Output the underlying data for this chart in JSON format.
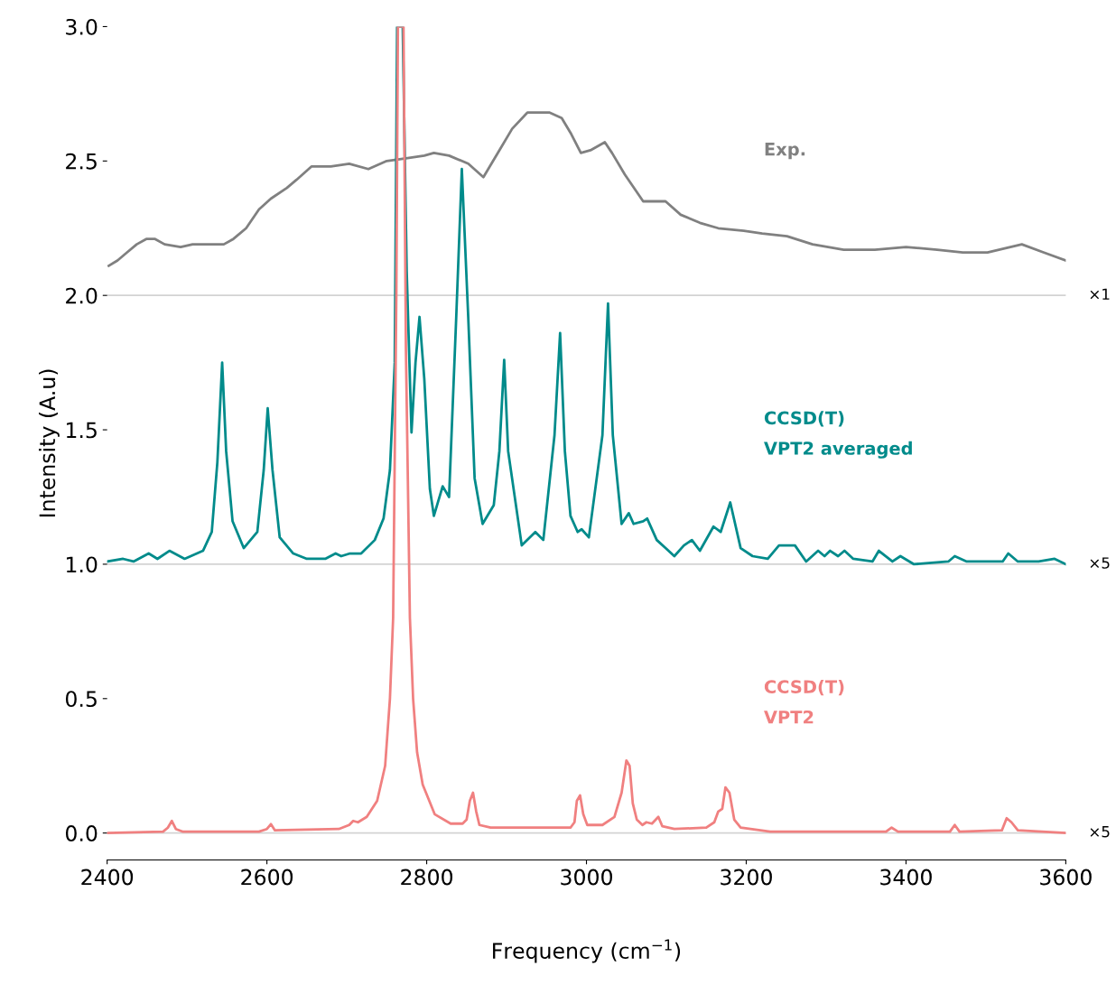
{
  "chart_data": {
    "type": "line",
    "xlabel": "Frequency (cm$^{−1}$)",
    "ylabel": "Intensity (A.u)",
    "xlim": [
      2400,
      3600
    ],
    "ylim": [
      -0.1,
      3.0
    ],
    "xticks": [
      2400,
      2600,
      2800,
      3000,
      3200,
      3400,
      3600
    ],
    "yticks": [
      {
        "value": 0,
        "label": "0.0"
      },
      0.5,
      {
        "value": 1,
        "label": "1.0"
      },
      1.5,
      {
        "value": 2,
        "label": "2.0"
      },
      2.5,
      {
        "value": 3,
        "label": "3.0"
      }
    ],
    "grid": false,
    "legend": false,
    "line_style": "solid",
    "marker": "none",
    "ref_lines": [
      {
        "axis": "y",
        "value": 2.0,
        "label": "×1",
        "color": "#d3d3d3"
      },
      {
        "axis": "y",
        "value": 1.0,
        "label": "×5",
        "color": "#d3d3d3"
      },
      {
        "axis": "y",
        "value": 0.0,
        "label": "×5",
        "color": "#d3d3d3"
      }
    ],
    "series": [
      {
        "name": "Exp.",
        "color": "#808080",
        "x": [
          2402,
          2413,
          2425,
          2437,
          2449,
          2460,
          2472,
          2492,
          2507,
          2531,
          2546,
          2558,
          2574,
          2590,
          2605,
          2625,
          2637,
          2656,
          2680,
          2703,
          2727,
          2750,
          2774,
          2797,
          2809,
          2828,
          2852,
          2871,
          2891,
          2907,
          2926,
          2954,
          2969,
          2981,
          2993,
          3005,
          3023,
          3032,
          3048,
          3071,
          3099,
          3118,
          3142,
          3165,
          3197,
          3220,
          3251,
          3283,
          3322,
          3361,
          3400,
          3439,
          3471,
          3502,
          3545,
          3572,
          3600
        ],
        "values": [
          2.11,
          2.13,
          2.16,
          2.19,
          2.21,
          2.21,
          2.19,
          2.18,
          2.19,
          2.19,
          2.19,
          2.21,
          2.25,
          2.32,
          2.36,
          2.4,
          2.43,
          2.48,
          2.48,
          2.49,
          2.47,
          2.5,
          2.51,
          2.52,
          2.53,
          2.52,
          2.49,
          2.44,
          2.54,
          2.62,
          2.68,
          2.68,
          2.66,
          2.6,
          2.53,
          2.54,
          2.57,
          2.53,
          2.45,
          2.35,
          2.35,
          2.3,
          2.27,
          2.25,
          2.24,
          2.23,
          2.22,
          2.19,
          2.17,
          2.17,
          2.18,
          2.17,
          2.16,
          2.16,
          2.19,
          2.16,
          2.13
        ]
      },
      {
        "name": "CCSD(T)\nVPT2 averaged",
        "color": "#008B8B",
        "x": [
          2400,
          2420,
          2433,
          2452,
          2463,
          2478,
          2497,
          2520,
          2531,
          2538,
          2544,
          2549,
          2557,
          2571,
          2588,
          2596,
          2601,
          2607,
          2616,
          2633,
          2650,
          2673,
          2686,
          2693,
          2704,
          2718,
          2735,
          2746,
          2754,
          2760,
          2763,
          2770,
          2775,
          2781,
          2786,
          2791,
          2797,
          2804,
          2809,
          2820,
          2828,
          2837,
          2844,
          2852,
          2860,
          2870,
          2884,
          2891,
          2897,
          2902,
          2919,
          2936,
          2946,
          2960,
          2967,
          2973,
          2980,
          2989,
          2994,
          3003,
          3020,
          3027,
          3033,
          3044,
          3053,
          3059,
          3071,
          3076,
          3088,
          3099,
          3110,
          3122,
          3132,
          3142,
          3159,
          3168,
          3180,
          3193,
          3208,
          3227,
          3241,
          3253,
          3261,
          3275,
          3290,
          3298,
          3305,
          3315,
          3323,
          3334,
          3358,
          3366,
          3383,
          3393,
          3410,
          3453,
          3461,
          3476,
          3521,
          3528,
          3540,
          3566,
          3586,
          3600
        ],
        "values": [
          1.01,
          1.02,
          1.01,
          1.04,
          1.02,
          1.05,
          1.02,
          1.05,
          1.12,
          1.38,
          1.75,
          1.42,
          1.16,
          1.06,
          1.12,
          1.35,
          1.58,
          1.35,
          1.1,
          1.04,
          1.02,
          1.02,
          1.04,
          1.03,
          1.04,
          1.04,
          1.09,
          1.17,
          1.35,
          1.75,
          3.0,
          3.0,
          2.09,
          1.49,
          1.75,
          1.92,
          1.69,
          1.28,
          1.18,
          1.29,
          1.25,
          1.92,
          2.47,
          1.92,
          1.32,
          1.15,
          1.22,
          1.42,
          1.76,
          1.42,
          1.07,
          1.12,
          1.09,
          1.48,
          1.86,
          1.42,
          1.18,
          1.12,
          1.13,
          1.1,
          1.48,
          1.97,
          1.48,
          1.15,
          1.19,
          1.15,
          1.16,
          1.17,
          1.09,
          1.06,
          1.03,
          1.07,
          1.09,
          1.05,
          1.14,
          1.12,
          1.23,
          1.06,
          1.03,
          1.02,
          1.07,
          1.07,
          1.07,
          1.01,
          1.05,
          1.03,
          1.05,
          1.03,
          1.05,
          1.02,
          1.01,
          1.05,
          1.01,
          1.03,
          1.0,
          1.01,
          1.03,
          1.01,
          1.01,
          1.04,
          1.01,
          1.01,
          1.02,
          1.0
        ]
      },
      {
        "name": "CCSD(T)\nVPT2",
        "color": "#F08080",
        "x": [
          2400,
          2470,
          2476,
          2481,
          2486,
          2495,
          2590,
          2600,
          2605,
          2610,
          2690,
          2703,
          2708,
          2714,
          2725,
          2738,
          2748,
          2754,
          2758,
          2762,
          2764,
          2771,
          2774,
          2779,
          2783,
          2788,
          2795,
          2810,
          2830,
          2845,
          2850,
          2854,
          2858,
          2862,
          2866,
          2880,
          2980,
          2985,
          2988,
          2992,
          2996,
          3001,
          3020,
          3035,
          3044,
          3050,
          3054,
          3058,
          3063,
          3070,
          3075,
          3082,
          3090,
          3095,
          3110,
          3150,
          3160,
          3165,
          3170,
          3174,
          3179,
          3185,
          3193,
          3230,
          3375,
          3382,
          3390,
          3455,
          3461,
          3467,
          3520,
          3526,
          3532,
          3540,
          3600
        ],
        "values": [
          0.0,
          0.005,
          0.02,
          0.045,
          0.015,
          0.005,
          0.005,
          0.015,
          0.033,
          0.01,
          0.015,
          0.03,
          0.045,
          0.04,
          0.06,
          0.12,
          0.25,
          0.5,
          0.8,
          2.0,
          3.0,
          3.0,
          1.8,
          0.8,
          0.5,
          0.3,
          0.18,
          0.07,
          0.035,
          0.035,
          0.05,
          0.12,
          0.15,
          0.08,
          0.03,
          0.02,
          0.02,
          0.04,
          0.12,
          0.14,
          0.07,
          0.03,
          0.03,
          0.06,
          0.15,
          0.27,
          0.25,
          0.11,
          0.05,
          0.03,
          0.04,
          0.035,
          0.06,
          0.025,
          0.015,
          0.02,
          0.04,
          0.08,
          0.09,
          0.17,
          0.15,
          0.05,
          0.02,
          0.005,
          0.005,
          0.02,
          0.005,
          0.005,
          0.03,
          0.005,
          0.01,
          0.055,
          0.04,
          0.01,
          0.0
        ]
      }
    ]
  }
}
